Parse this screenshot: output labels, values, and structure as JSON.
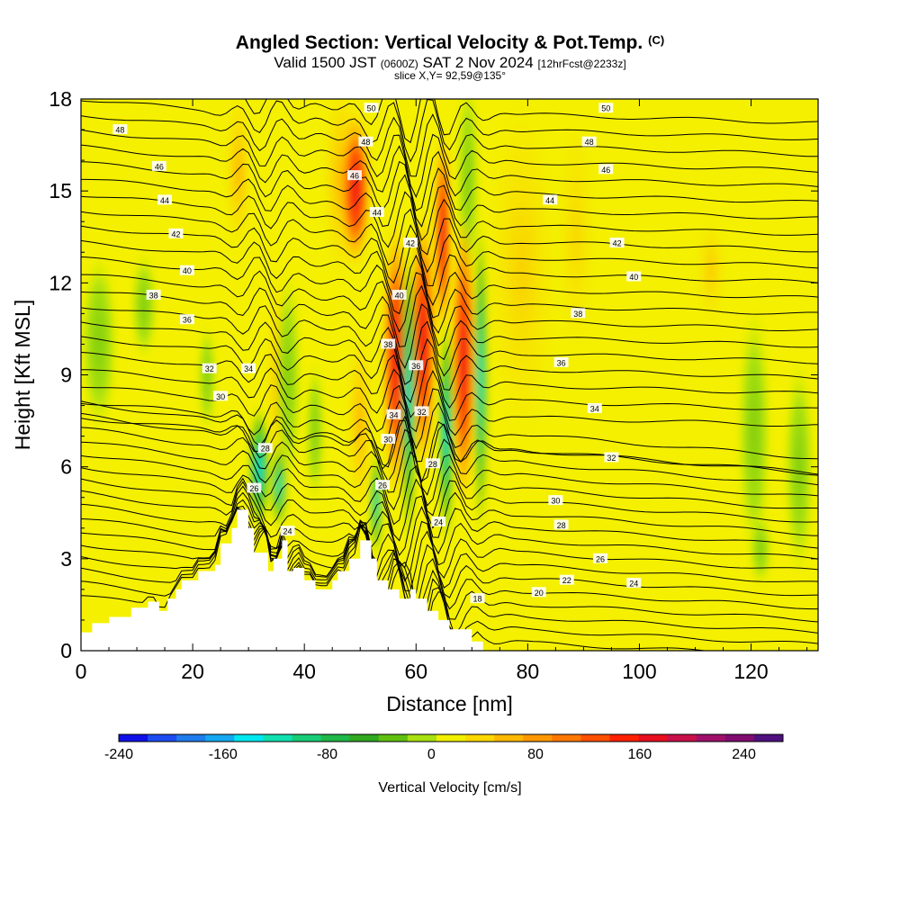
{
  "header": {
    "title": "Angled Section: Vertical Velocity & Pot.Temp.",
    "title_tag": "(C)",
    "valid_main": "Valid 1500 JST",
    "valid_utc": "(0600Z)",
    "valid_date": "SAT 2 Nov 2024",
    "forecast": "[12hrFcst@2233z]",
    "slice": "slice X,Y= 92,59@135°"
  },
  "chart_data": {
    "type": "heatmap",
    "xlabel": "Distance [nm]",
    "ylabel": "Height [Kft MSL]",
    "xlim": [
      0,
      132
    ],
    "ylim": [
      0,
      18
    ],
    "x_ticks": [
      0,
      20,
      40,
      60,
      80,
      100,
      120
    ],
    "y_ticks": [
      0,
      3,
      6,
      9,
      12,
      15,
      18
    ],
    "colorbar": {
      "label": "Vertical Velocity [cm/s]",
      "range": [
        -240,
        270
      ],
      "ticks": [
        -240,
        -160,
        -80,
        0,
        80,
        160,
        240
      ],
      "colors": [
        "#1010e8",
        "#1c4cf0",
        "#1e7cec",
        "#14a8f0",
        "#00e8f0",
        "#10e0b0",
        "#18cc78",
        "#20b848",
        "#30a820",
        "#60c010",
        "#a8e010",
        "#f0f000",
        "#ffd800",
        "#ffb800",
        "#ff9800",
        "#ff7800",
        "#ff5000",
        "#ff2000",
        "#e8101e",
        "#c8104a",
        "#a0106a",
        "#800c70",
        "#501080"
      ]
    },
    "terrain_kft": [
      [
        0,
        0.6
      ],
      [
        2,
        0.6
      ],
      [
        2,
        0.9
      ],
      [
        5,
        0.9
      ],
      [
        5,
        1.1
      ],
      [
        9,
        1.1
      ],
      [
        9,
        1.4
      ],
      [
        12,
        1.4
      ],
      [
        12,
        1.6
      ],
      [
        14,
        1.6
      ],
      [
        14,
        1.3
      ],
      [
        15.5,
        1.3
      ],
      [
        15.5,
        1.7
      ],
      [
        17,
        1.7
      ],
      [
        17,
        2.0
      ],
      [
        18,
        2.0
      ],
      [
        18,
        2.3
      ],
      [
        21,
        2.3
      ],
      [
        21,
        2.6
      ],
      [
        24,
        2.6
      ],
      [
        24,
        2.8
      ],
      [
        25,
        2.8
      ],
      [
        25,
        3.5
      ],
      [
        27,
        3.5
      ],
      [
        27,
        4.0
      ],
      [
        28,
        4.0
      ],
      [
        28,
        4.6
      ],
      [
        30,
        4.6
      ],
      [
        30,
        4.0
      ],
      [
        31,
        4.0
      ],
      [
        31,
        3.2
      ],
      [
        33.5,
        3.2
      ],
      [
        33.5,
        2.6
      ],
      [
        34.5,
        2.6
      ],
      [
        34.5,
        3.0
      ],
      [
        36,
        3.0
      ],
      [
        36,
        3.6
      ],
      [
        37,
        3.6
      ],
      [
        37,
        2.6
      ],
      [
        38,
        2.6
      ],
      [
        38,
        2.7
      ],
      [
        40,
        2.7
      ],
      [
        40,
        2.3
      ],
      [
        42,
        2.3
      ],
      [
        42,
        2.0
      ],
      [
        45,
        2.0
      ],
      [
        45,
        2.3
      ],
      [
        46,
        2.3
      ],
      [
        46,
        2.6
      ],
      [
        48,
        2.6
      ],
      [
        48,
        3.0
      ],
      [
        50,
        3.0
      ],
      [
        50,
        3.6
      ],
      [
        52,
        3.6
      ],
      [
        52,
        3.0
      ],
      [
        53,
        3.0
      ],
      [
        53,
        2.3
      ],
      [
        55,
        2.3
      ],
      [
        55,
        2.0
      ],
      [
        57,
        2.0
      ],
      [
        57,
        1.7
      ],
      [
        59,
        1.7
      ],
      [
        59,
        2.0
      ],
      [
        60,
        2.0
      ],
      [
        60,
        1.7
      ],
      [
        62,
        1.7
      ],
      [
        62,
        1.3
      ],
      [
        64,
        1.3
      ],
      [
        64,
        1.0
      ],
      [
        66,
        1.0
      ],
      [
        66,
        0.7
      ],
      [
        70,
        0.7
      ],
      [
        70,
        0.3
      ],
      [
        72,
        0.3
      ],
      [
        72,
        0
      ],
      [
        132,
        0
      ]
    ],
    "isentrope_labels": [
      [
        "50",
        52,
        17.7
      ],
      [
        "50",
        94,
        17.7
      ],
      [
        "48",
        7,
        17.0
      ],
      [
        "48",
        51,
        16.6
      ],
      [
        "48",
        91,
        16.6
      ],
      [
        "46",
        14,
        15.8
      ],
      [
        "46",
        49,
        15.5
      ],
      [
        "46",
        94,
        15.7
      ],
      [
        "44",
        15,
        14.7
      ],
      [
        "44",
        53,
        14.3
      ],
      [
        "44",
        84,
        14.7
      ],
      [
        "42",
        17,
        13.6
      ],
      [
        "42",
        59,
        13.3
      ],
      [
        "42",
        96,
        13.3
      ],
      [
        "40",
        19,
        12.4
      ],
      [
        "40",
        57,
        11.6
      ],
      [
        "40",
        99,
        12.2
      ],
      [
        "38",
        13,
        11.6
      ],
      [
        "38",
        55,
        10.0
      ],
      [
        "38",
        89,
        11.0
      ],
      [
        "36",
        19,
        10.8
      ],
      [
        "36",
        60,
        9.3
      ],
      [
        "36",
        86,
        9.4
      ],
      [
        "34",
        30,
        9.2
      ],
      [
        "34",
        56,
        7.7
      ],
      [
        "34",
        92,
        7.9
      ],
      [
        "32",
        23,
        9.2
      ],
      [
        "32",
        61,
        7.8
      ],
      [
        "32",
        95,
        6.3
      ],
      [
        "30",
        25,
        8.3
      ],
      [
        "30",
        55,
        6.9
      ],
      [
        "30",
        85,
        4.9
      ],
      [
        "28",
        33,
        6.6
      ],
      [
        "28",
        63,
        6.1
      ],
      [
        "28",
        86,
        4.1
      ],
      [
        "26",
        31,
        5.3
      ],
      [
        "26",
        54,
        5.4
      ],
      [
        "26",
        93,
        3.0
      ],
      [
        "24",
        37,
        3.9
      ],
      [
        "24",
        64,
        4.2
      ],
      [
        "24",
        99,
        2.2
      ],
      [
        "22",
        87,
        2.3
      ],
      [
        "20",
        82,
        1.9
      ],
      [
        "18",
        71,
        1.7
      ]
    ]
  }
}
